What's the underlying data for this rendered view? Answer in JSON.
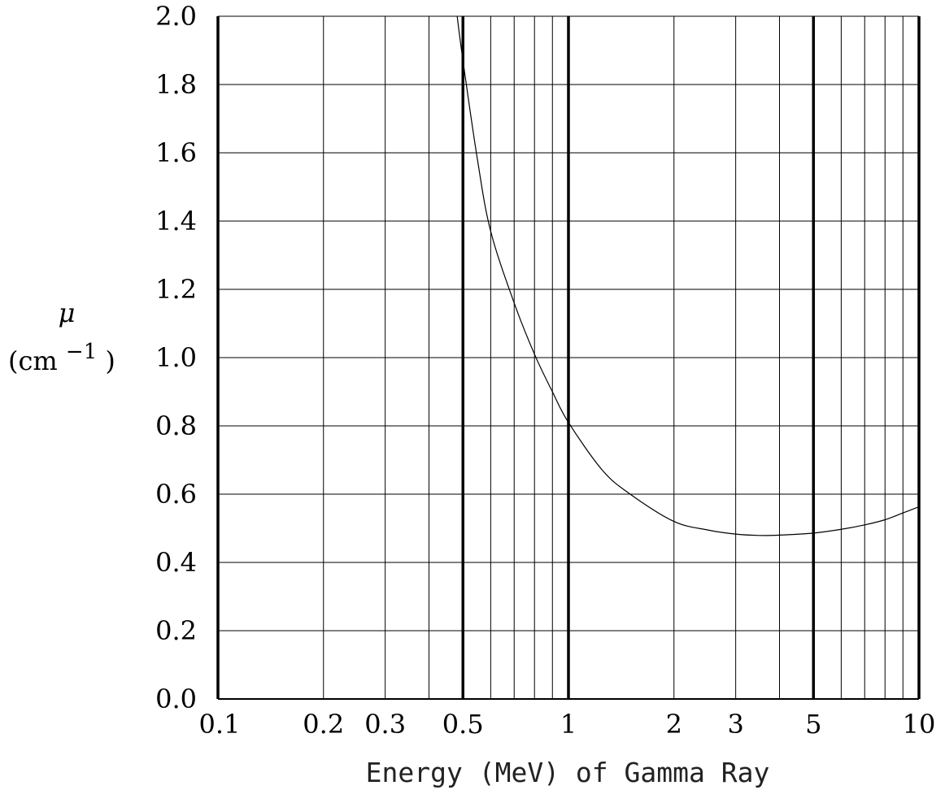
{
  "chart_data": {
    "type": "line",
    "title": "",
    "xlabel": "Energy (MeV) of Gamma Ray",
    "ylabel_symbol": "μ",
    "ylabel_unit_open": "(cm",
    "ylabel_unit_exp": "−1",
    "ylabel_unit_close": ")",
    "x_scale": "log",
    "xlim": [
      0.1,
      10
    ],
    "ylim": [
      0.0,
      2.0
    ],
    "grid": true,
    "x_ticks": [
      {
        "value": 0.1,
        "label": "0.1"
      },
      {
        "value": 0.2,
        "label": "0.2"
      },
      {
        "value": 0.3,
        "label": "0.3"
      },
      {
        "value": 0.5,
        "label": "0.5"
      },
      {
        "value": 1,
        "label": "1"
      },
      {
        "value": 2,
        "label": "2"
      },
      {
        "value": 3,
        "label": "3"
      },
      {
        "value": 5,
        "label": "5"
      },
      {
        "value": 10,
        "label": "10"
      }
    ],
    "y_ticks": [
      {
        "value": 0.0,
        "label": "0.0"
      },
      {
        "value": 0.2,
        "label": "0.2"
      },
      {
        "value": 0.4,
        "label": "0.4"
      },
      {
        "value": 0.6,
        "label": "0.6"
      },
      {
        "value": 0.8,
        "label": "0.8"
      },
      {
        "value": 1.0,
        "label": "1.0"
      },
      {
        "value": 1.2,
        "label": "1.2"
      },
      {
        "value": 1.4,
        "label": "1.4"
      },
      {
        "value": 1.6,
        "label": "1.6"
      },
      {
        "value": 1.8,
        "label": "1.8"
      },
      {
        "value": 2.0,
        "label": "2.0"
      }
    ],
    "x_minor_gridlines": [
      0.2,
      0.3,
      0.4,
      0.6,
      0.7,
      0.8,
      0.9,
      2,
      3,
      4,
      6,
      7,
      8,
      9
    ],
    "x_major_gridlines": [
      0.1,
      0.5,
      1,
      5,
      10
    ],
    "series": [
      {
        "x": [
          0.48,
          0.5,
          0.55,
          0.6,
          0.7,
          0.8,
          0.9,
          1.0,
          1.25,
          1.5,
          2.0,
          2.5,
          3.0,
          3.5,
          4.0,
          5.0,
          6.0,
          7.0,
          8.0,
          9.0,
          10.0
        ],
        "y": [
          2.01,
          1.87,
          1.58,
          1.37,
          1.16,
          1.01,
          0.9,
          0.81,
          0.67,
          0.6,
          0.52,
          0.495,
          0.483,
          0.479,
          0.48,
          0.486,
          0.497,
          0.51,
          0.525,
          0.545,
          0.563
        ]
      }
    ]
  }
}
